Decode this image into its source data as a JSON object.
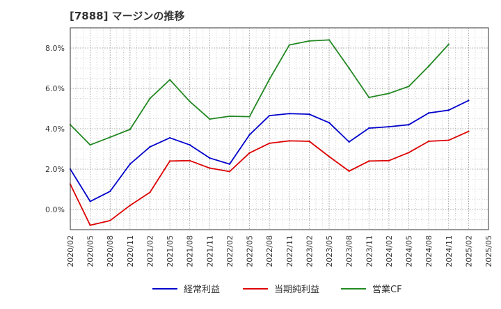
{
  "chart_data": {
    "type": "line",
    "title": "[7888]  マージンの推移",
    "xlabel": "",
    "ylabel": "",
    "ylim": [
      -1.0,
      9.0
    ],
    "y_ticks": [
      -0.0,
      2.0,
      4.0,
      6.0,
      8.0
    ],
    "y_tick_labels": [
      "0.0%",
      "2.0%",
      "4.0%",
      "6.0%",
      "8.0%"
    ],
    "x_tick_labels": [
      "2020/02",
      "2020/05",
      "2020/08",
      "2020/11",
      "2021/02",
      "2021/05",
      "2021/08",
      "2021/11",
      "2022/02",
      "2022/05",
      "2022/08",
      "2022/11",
      "2023/02",
      "2023/05",
      "2023/08",
      "2023/11",
      "2024/02",
      "2024/05",
      "2024/08",
      "2024/11",
      "2025/02",
      "2025/05"
    ],
    "categories": [
      "2020/02",
      "2020/05",
      "2020/08",
      "2020/11",
      "2021/02",
      "2021/05",
      "2021/08",
      "2021/11",
      "2022/02",
      "2022/05",
      "2022/08",
      "2022/11",
      "2023/02",
      "2023/05",
      "2023/08",
      "2023/11",
      "2024/02",
      "2024/05",
      "2024/08",
      "2024/11",
      "2025/02",
      "2025/05"
    ],
    "grid": true,
    "legend_position": "bottom",
    "series": [
      {
        "name": "経常利益",
        "color": "#0000cc",
        "values": [
          2.0,
          0.4,
          0.9,
          2.25,
          3.1,
          3.55,
          3.2,
          2.55,
          2.25,
          3.7,
          4.65,
          4.75,
          4.72,
          4.3,
          3.35,
          4.03,
          4.1,
          4.2,
          4.78,
          4.92,
          5.4,
          null
        ]
      },
      {
        "name": "当期純利益",
        "color": "#dd0000",
        "values": [
          1.25,
          -0.78,
          -0.55,
          0.2,
          0.85,
          2.4,
          2.42,
          2.05,
          1.88,
          2.8,
          3.28,
          3.4,
          3.38,
          2.62,
          1.9,
          2.4,
          2.42,
          2.82,
          3.38,
          3.43,
          3.87,
          null
        ]
      },
      {
        "name": "営業CF",
        "color": "#228822",
        "values": [
          4.2,
          3.2,
          3.58,
          3.97,
          5.5,
          6.43,
          5.35,
          4.48,
          4.62,
          4.6,
          6.45,
          8.15,
          8.35,
          8.4,
          7.0,
          5.55,
          5.75,
          6.1,
          7.1,
          8.18,
          null,
          null
        ]
      }
    ]
  }
}
